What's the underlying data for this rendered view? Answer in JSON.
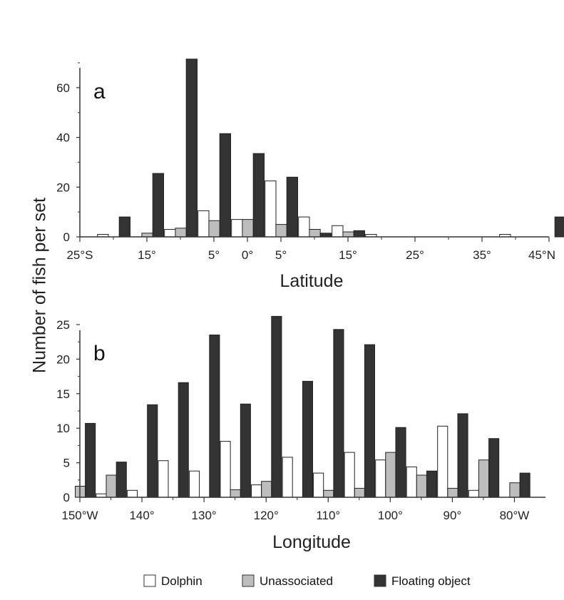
{
  "ylabel": "Number of fish per set",
  "colors": {
    "dolphin": "#ffffff",
    "unassociated": "#bdbdbd",
    "floating": "#333333",
    "axis": "#333333"
  },
  "legend": [
    {
      "key": "dolphin",
      "label": "Dolphin"
    },
    {
      "key": "unassociated",
      "label": "Unassociated"
    },
    {
      "key": "floating",
      "label": "Floating object"
    }
  ],
  "chart_data": [
    {
      "panel": "a",
      "type": "bar",
      "xlabel": "Latitude",
      "ylabel": "Number of fish per set",
      "xlim": [
        -25,
        45
      ],
      "ylim": [
        0,
        70
      ],
      "xticks": [
        -25,
        -15,
        -5,
        0,
        5,
        15,
        25,
        35,
        45
      ],
      "xtick_labels": [
        "25°S",
        "15°",
        "5°",
        "0°",
        "5°",
        "15°",
        "25°",
        "35°",
        "45°N"
      ],
      "yticks": [
        0,
        20,
        40,
        60
      ],
      "ytick_labels": [
        "0",
        "20",
        "40",
        "60"
      ],
      "bin_width": 5,
      "series": [
        {
          "key": "dolphin",
          "name": "Dolphin",
          "points": [
            [
              -20,
              1
            ],
            [
              -10,
              3
            ],
            [
              -5,
              10.5
            ],
            [
              0,
              7
            ],
            [
              5,
              22.5
            ],
            [
              10,
              8
            ],
            [
              15,
              4.5
            ],
            [
              20,
              1
            ],
            [
              40,
              1
            ]
          ]
        },
        {
          "key": "unassociated",
          "name": "Unassociated",
          "points": [
            [
              -15,
              1.5
            ],
            [
              -10,
              3.5
            ],
            [
              -5,
              6.5
            ],
            [
              0,
              7
            ],
            [
              5,
              5
            ],
            [
              10,
              3
            ],
            [
              15,
              2
            ]
          ]
        },
        {
          "key": "floating",
          "name": "Floating object",
          "points": [
            [
              -20,
              8
            ],
            [
              -15,
              25.5
            ],
            [
              -10,
              71.5
            ],
            [
              -5,
              41.5
            ],
            [
              0,
              33.5
            ],
            [
              5,
              24
            ],
            [
              10,
              1.5
            ],
            [
              15,
              2.5
            ],
            [
              45,
              8
            ]
          ]
        }
      ]
    },
    {
      "panel": "b",
      "type": "bar",
      "xlabel": "Longitude",
      "ylabel": "Number of fish per set",
      "xlim": [
        150,
        75
      ],
      "ylim": [
        0,
        25
      ],
      "xticks": [
        150,
        140,
        130,
        120,
        110,
        100,
        90,
        80
      ],
      "xtick_labels": [
        "150°W",
        "140°",
        "130°",
        "120°",
        "110°",
        "100°",
        "90°",
        "80°W"
      ],
      "yticks": [
        0,
        5,
        10,
        15,
        20,
        25
      ],
      "ytick_labels": [
        "0",
        "5",
        "10",
        "15",
        "20",
        "25"
      ],
      "bin_width": 5,
      "series": [
        {
          "key": "dolphin",
          "name": "Dolphin",
          "points": [
            [
              145,
              0.5
            ],
            [
              140,
              1
            ],
            [
              135,
              5.3
            ],
            [
              130,
              3.8
            ],
            [
              125,
              8.1
            ],
            [
              120,
              1.8
            ],
            [
              115,
              5.8
            ],
            [
              110,
              3.5
            ],
            [
              105,
              6.5
            ],
            [
              100,
              5.4
            ],
            [
              95,
              4.4
            ],
            [
              90,
              10.3
            ],
            [
              85,
              1
            ]
          ]
        },
        {
          "key": "unassociated",
          "name": "Unassociated",
          "points": [
            [
              150,
              1.6
            ],
            [
              145,
              3.2
            ],
            [
              125,
              1.1
            ],
            [
              120,
              2.3
            ],
            [
              110,
              1
            ],
            [
              105,
              1.3
            ],
            [
              100,
              6.5
            ],
            [
              95,
              3.2
            ],
            [
              90,
              1.3
            ],
            [
              85,
              5.4
            ],
            [
              80,
              2.1
            ]
          ]
        },
        {
          "key": "floating",
          "name": "Floating object",
          "points": [
            [
              150,
              10.7
            ],
            [
              145,
              5.1
            ],
            [
              140,
              13.4
            ],
            [
              135,
              16.6
            ],
            [
              130,
              23.5
            ],
            [
              125,
              13.5
            ],
            [
              120,
              26.2
            ],
            [
              115,
              16.8
            ],
            [
              110,
              24.3
            ],
            [
              105,
              22.1
            ],
            [
              100,
              10.1
            ],
            [
              95,
              3.8
            ],
            [
              90,
              12.1
            ],
            [
              85,
              8.5
            ],
            [
              80,
              3.5
            ]
          ]
        }
      ]
    }
  ]
}
